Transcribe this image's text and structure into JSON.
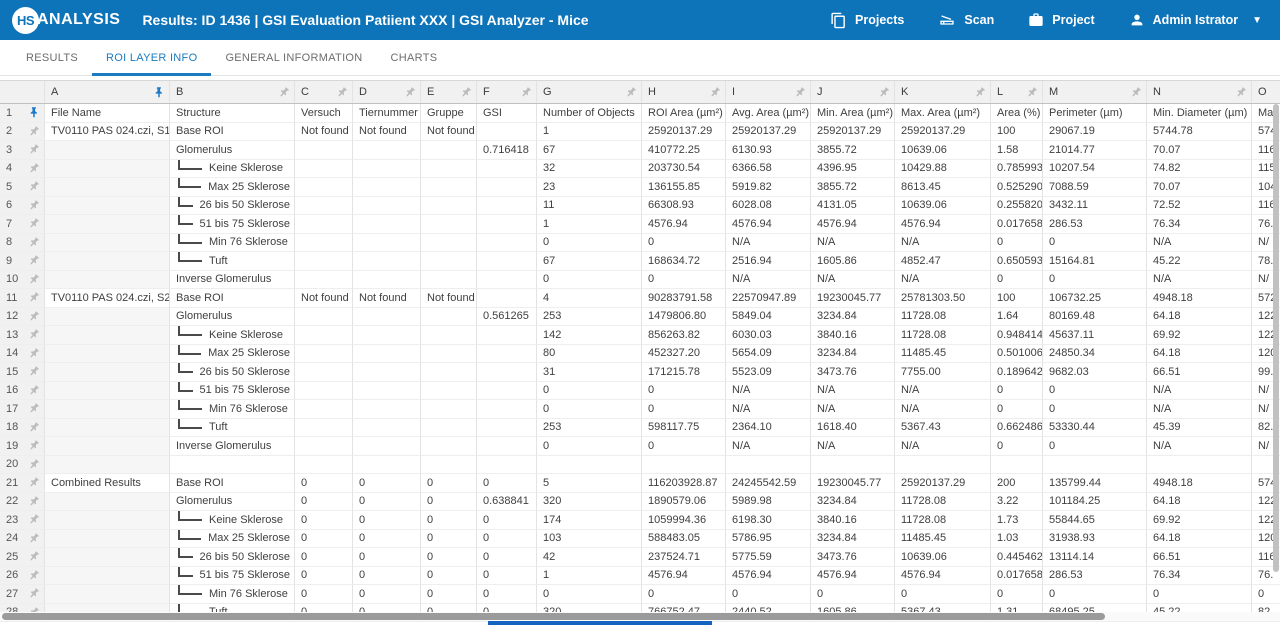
{
  "topbar": {
    "logo_circle": "HS",
    "logo_text": "ANALYSIS",
    "title": "Results: ID 1436 | GSI Evaluation Patiient XXX | GSI Analyzer - Mice",
    "projects_label": "Projects",
    "scan_label": "Scan",
    "project_label": "Project",
    "user_label": "Admin Istrator",
    "icons": [
      "projects-icon",
      "scanner-icon",
      "briefcase-icon",
      "user-icon",
      "chevron-down-icon"
    ]
  },
  "colors": {
    "topbar_blue": "#0d74ba",
    "active_tab_blue": "#1a7bc0",
    "pinned_pin_blue": "#1e78c8",
    "unpinned_pin_grey": "#b3b3b3",
    "bottom_strip_blue": "#1565c0"
  },
  "tabs": [
    {
      "label": "RESULTS",
      "active": false
    },
    {
      "label": "ROI LAYER INFO",
      "active": true
    },
    {
      "label": "GENERAL INFORMATION",
      "active": false
    },
    {
      "label": "CHARTS",
      "active": false
    }
  ],
  "grid": {
    "column_letters": [
      "A",
      "B",
      "C",
      "D",
      "E",
      "F",
      "G",
      "H",
      "I",
      "J",
      "K",
      "L",
      "M",
      "N",
      "O"
    ],
    "pinned_column": "A",
    "header_row_number": "1",
    "header_row": [
      "File Name",
      "Structure",
      "Versuch",
      "Tiernummer",
      "Gruppe",
      "GSI",
      "Number of Objects",
      "ROI Area (µm²)",
      "Avg. Area (µm²)",
      "Min. Area (µm²)",
      "Max. Area (µm²)",
      "Area (%)",
      "Perimeter (µm)",
      "Min. Diameter (µm)",
      "Ma"
    ],
    "rows": [
      {
        "n": "2",
        "child": false,
        "cells": [
          "TV0110 PAS 024.czi, S1",
          "Base ROI",
          "Not found",
          "Not found",
          "Not found",
          "",
          "1",
          "25920137.29",
          "25920137.29",
          "25920137.29",
          "25920137.29",
          "100",
          "29067.19",
          "5744.78",
          "574"
        ]
      },
      {
        "n": "3",
        "child": false,
        "cells": [
          "",
          "Glomerulus",
          "",
          "",
          "",
          "0.716418",
          "67",
          "410772.25",
          "6130.93",
          "3855.72",
          "10639.06",
          "1.58",
          "21014.77",
          "70.07",
          "116"
        ]
      },
      {
        "n": "4",
        "child": true,
        "cells": [
          "",
          "Keine Sklerose",
          "",
          "",
          "",
          "",
          "32",
          "203730.54",
          "6366.58",
          "4396.95",
          "10429.88",
          "0.785993",
          "10207.54",
          "74.82",
          "115"
        ]
      },
      {
        "n": "5",
        "child": true,
        "cells": [
          "",
          "Max 25 Sklerose",
          "",
          "",
          "",
          "",
          "23",
          "136155.85",
          "5919.82",
          "3855.72",
          "8613.45",
          "0.525290",
          "7088.59",
          "70.07",
          "104"
        ]
      },
      {
        "n": "6",
        "child": true,
        "cells": [
          "",
          "26 bis 50 Sklerose",
          "",
          "",
          "",
          "",
          "11",
          "66308.93",
          "6028.08",
          "4131.05",
          "10639.06",
          "0.255820",
          "3432.11",
          "72.52",
          "116"
        ]
      },
      {
        "n": "7",
        "child": true,
        "cells": [
          "",
          "51 bis 75 Sklerose",
          "",
          "",
          "",
          "",
          "1",
          "4576.94",
          "4576.94",
          "4576.94",
          "4576.94",
          "0.017658",
          "286.53",
          "76.34",
          "76."
        ]
      },
      {
        "n": "8",
        "child": true,
        "cells": [
          "",
          "Min 76 Sklerose",
          "",
          "",
          "",
          "",
          "0",
          "0",
          "N/A",
          "N/A",
          "N/A",
          "0",
          "0",
          "N/A",
          "N/"
        ]
      },
      {
        "n": "9",
        "child": true,
        "cells": [
          "",
          "Tuft",
          "",
          "",
          "",
          "",
          "67",
          "168634.72",
          "2516.94",
          "1605.86",
          "4852.47",
          "0.650593",
          "15164.81",
          "45.22",
          "78."
        ]
      },
      {
        "n": "10",
        "child": false,
        "cells": [
          "",
          "Inverse Glomerulus",
          "",
          "",
          "",
          "",
          "0",
          "0",
          "N/A",
          "N/A",
          "N/A",
          "0",
          "0",
          "N/A",
          "N/"
        ]
      },
      {
        "n": "11",
        "child": false,
        "cells": [
          "TV0110 PAS 024.czi, S2",
          "Base ROI",
          "Not found",
          "Not found",
          "Not found",
          "",
          "4",
          "90283791.58",
          "22570947.89",
          "19230045.77",
          "25781303.50",
          "100",
          "106732.25",
          "4948.18",
          "572"
        ]
      },
      {
        "n": "12",
        "child": false,
        "cells": [
          "",
          "Glomerulus",
          "",
          "",
          "",
          "0.561265",
          "253",
          "1479806.80",
          "5849.04",
          "3234.84",
          "11728.08",
          "1.64",
          "80169.48",
          "64.18",
          "122"
        ]
      },
      {
        "n": "13",
        "child": true,
        "cells": [
          "",
          "Keine Sklerose",
          "",
          "",
          "",
          "",
          "142",
          "856263.82",
          "6030.03",
          "3840.16",
          "11728.08",
          "0.948414",
          "45637.11",
          "69.92",
          "122"
        ]
      },
      {
        "n": "14",
        "child": true,
        "cells": [
          "",
          "Max 25 Sklerose",
          "",
          "",
          "",
          "",
          "80",
          "452327.20",
          "5654.09",
          "3234.84",
          "11485.45",
          "0.501006",
          "24850.34",
          "64.18",
          "120"
        ]
      },
      {
        "n": "15",
        "child": true,
        "cells": [
          "",
          "26 bis 50 Sklerose",
          "",
          "",
          "",
          "",
          "31",
          "171215.78",
          "5523.09",
          "3473.76",
          "7755.00",
          "0.189642",
          "9682.03",
          "66.51",
          "99."
        ]
      },
      {
        "n": "16",
        "child": true,
        "cells": [
          "",
          "51 bis 75 Sklerose",
          "",
          "",
          "",
          "",
          "0",
          "0",
          "N/A",
          "N/A",
          "N/A",
          "0",
          "0",
          "N/A",
          "N/"
        ]
      },
      {
        "n": "17",
        "child": true,
        "cells": [
          "",
          "Min 76 Sklerose",
          "",
          "",
          "",
          "",
          "0",
          "0",
          "N/A",
          "N/A",
          "N/A",
          "0",
          "0",
          "N/A",
          "N/"
        ]
      },
      {
        "n": "18",
        "child": true,
        "cells": [
          "",
          "Tuft",
          "",
          "",
          "",
          "",
          "253",
          "598117.75",
          "2364.10",
          "1618.40",
          "5367.43",
          "0.662486",
          "53330.44",
          "45.39",
          "82."
        ]
      },
      {
        "n": "19",
        "child": false,
        "cells": [
          "",
          "Inverse Glomerulus",
          "",
          "",
          "",
          "",
          "0",
          "0",
          "N/A",
          "N/A",
          "N/A",
          "0",
          "0",
          "N/A",
          "N/"
        ]
      },
      {
        "n": "20",
        "child": false,
        "cells": [
          "",
          "",
          "",
          "",
          "",
          "",
          "",
          "",
          "",
          "",
          "",
          "",
          "",
          "",
          ""
        ]
      },
      {
        "n": "21",
        "child": false,
        "cells": [
          "Combined Results",
          "Base ROI",
          "0",
          "0",
          "0",
          "0",
          "5",
          "116203928.87",
          "24245542.59",
          "19230045.77",
          "25920137.29",
          "200",
          "135799.44",
          "4948.18",
          "574"
        ]
      },
      {
        "n": "22",
        "child": false,
        "cells": [
          "",
          "Glomerulus",
          "0",
          "0",
          "0",
          "0.638841",
          "320",
          "1890579.06",
          "5989.98",
          "3234.84",
          "11728.08",
          "3.22",
          "101184.25",
          "64.18",
          "122"
        ]
      },
      {
        "n": "23",
        "child": true,
        "cells": [
          "",
          "Keine Sklerose",
          "0",
          "0",
          "0",
          "0",
          "174",
          "1059994.36",
          "6198.30",
          "3840.16",
          "11728.08",
          "1.73",
          "55844.65",
          "69.92",
          "122"
        ]
      },
      {
        "n": "24",
        "child": true,
        "cells": [
          "",
          "Max 25 Sklerose",
          "0",
          "0",
          "0",
          "0",
          "103",
          "588483.05",
          "5786.95",
          "3234.84",
          "11485.45",
          "1.03",
          "31938.93",
          "64.18",
          "120"
        ]
      },
      {
        "n": "25",
        "child": true,
        "cells": [
          "",
          "26 bis 50 Sklerose",
          "0",
          "0",
          "0",
          "0",
          "42",
          "237524.71",
          "5775.59",
          "3473.76",
          "10639.06",
          "0.445462",
          "13114.14",
          "66.51",
          "116"
        ]
      },
      {
        "n": "26",
        "child": true,
        "cells": [
          "",
          "51 bis 75 Sklerose",
          "0",
          "0",
          "0",
          "0",
          "1",
          "4576.94",
          "4576.94",
          "4576.94",
          "4576.94",
          "0.017658",
          "286.53",
          "76.34",
          "76."
        ]
      },
      {
        "n": "27",
        "child": true,
        "cells": [
          "",
          "Min 76 Sklerose",
          "0",
          "0",
          "0",
          "0",
          "0",
          "0",
          "0",
          "0",
          "0",
          "0",
          "0",
          "0",
          "0"
        ]
      },
      {
        "n": "28",
        "child": true,
        "cells": [
          "",
          "Tuft",
          "0",
          "0",
          "0",
          "0",
          "320",
          "766752.47",
          "2440.52",
          "1605.86",
          "5367.43",
          "1.31",
          "68495.25",
          "45.22",
          "82."
        ]
      }
    ]
  }
}
